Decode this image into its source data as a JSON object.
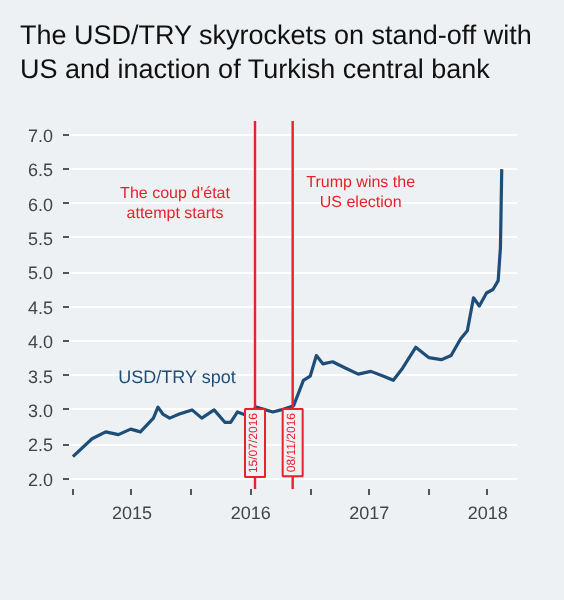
{
  "chart_data": {
    "type": "line",
    "title": "The USD/TRY skyrockets on stand-off with US and inaction of Turkish central bank",
    "x": [
      "2015-01-01",
      "2015-03-01",
      "2015-04-12",
      "2015-05-21",
      "2015-06-28",
      "2015-07-28",
      "2015-09-06",
      "2015-09-20",
      "2015-10-05",
      "2015-10-26",
      "2015-11-25",
      "2016-01-03",
      "2016-02-02",
      "2016-03-11",
      "2016-04-13",
      "2016-05-01",
      "2016-05-22",
      "2016-06-20",
      "2016-07-19",
      "2016-09-08",
      "2016-10-03",
      "2016-11-11",
      "2016-12-11",
      "2017-01-01",
      "2017-01-20",
      "2017-02-09",
      "2017-03-11",
      "2017-04-19",
      "2017-05-29",
      "2017-07-07",
      "2017-08-15",
      "2017-09-14",
      "2017-10-13",
      "2017-11-22",
      "2018-01-01",
      "2018-02-09",
      "2018-03-11",
      "2018-04-09",
      "2018-04-30",
      "2018-05-19",
      "2018-06-06",
      "2018-06-28",
      "2018-07-18",
      "2018-08-03",
      "2018-08-10",
      "2018-08-14"
    ],
    "series": [
      {
        "name": "USD/TRY spot",
        "color": "#1d4e79",
        "values": [
          2.32,
          2.58,
          2.68,
          2.64,
          2.72,
          2.68,
          2.88,
          3.04,
          2.94,
          2.88,
          2.94,
          3.0,
          2.88,
          3.0,
          2.82,
          2.82,
          2.97,
          2.92,
          3.04,
          2.97,
          3.0,
          3.06,
          3.43,
          3.49,
          3.79,
          3.67,
          3.7,
          3.61,
          3.52,
          3.56,
          3.49,
          3.43,
          3.61,
          3.91,
          3.76,
          3.73,
          3.79,
          4.03,
          4.15,
          4.63,
          4.51,
          4.7,
          4.75,
          4.88,
          5.36,
          6.5
        ]
      }
    ],
    "xlim": [
      "2014-12-20",
      "2018-09-30"
    ],
    "xticks": [
      {
        "value": "2015-01-01",
        "label": null
      },
      {
        "value": "2015-07-02",
        "label": "2015"
      },
      {
        "value": "2016-01-01",
        "label": null
      },
      {
        "value": "2016-07-02",
        "label": "2016"
      },
      {
        "value": "2017-01-01",
        "label": null
      },
      {
        "value": "2017-07-02",
        "label": "2017"
      },
      {
        "value": "2018-01-01",
        "label": null
      },
      {
        "value": "2018-07-02",
        "label": "2018"
      }
    ],
    "ylim": [
      1.85,
      7.2
    ],
    "yticks": [
      {
        "value": 2,
        "label": "2.0"
      },
      {
        "value": 2.5,
        "label": "2.5"
      },
      {
        "value": 3,
        "label": "3.0"
      },
      {
        "value": 3.5,
        "label": "3.5"
      },
      {
        "value": 4,
        "label": "4.0"
      },
      {
        "value": 4.5,
        "label": "4.5"
      },
      {
        "value": 5,
        "label": "5.0"
      },
      {
        "value": 5.5,
        "label": "5.5"
      },
      {
        "value": 6,
        "label": "6.0"
      },
      {
        "value": 6.5,
        "label": "6.5"
      },
      {
        "value": 7,
        "label": "7.0"
      }
    ],
    "grid": "y",
    "marker": "none",
    "line_style": "solid",
    "ref_lines": [
      {
        "axis": "x",
        "value": "2016-07-15",
        "label": "15/07/2016",
        "color": "#e8212b"
      },
      {
        "axis": "x",
        "value": "2016-11-08",
        "label": "08/11/2016",
        "color": "#e8212b"
      }
    ],
    "annotations": [
      "The coup d'état attempt starts",
      "Trump wins the US election"
    ]
  }
}
